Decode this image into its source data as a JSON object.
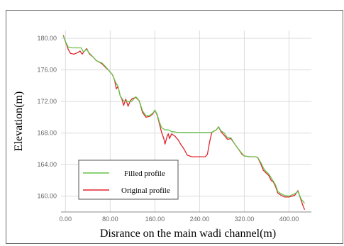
{
  "chart_data": {
    "type": "line",
    "title": "",
    "xlabel": "Disrance on the main wadi channel(m)",
    "ylabel": "Elevation(m)",
    "xlim": [
      -8,
      440
    ],
    "ylim": [
      158,
      181
    ],
    "grid": true,
    "x_ticks": [
      "0.00",
      "80.00",
      "160.00",
      "240.00",
      "320.00",
      "400.00"
    ],
    "x_tick_values": [
      0,
      80,
      160,
      240,
      320,
      400
    ],
    "y_ticks": [
      "180.00",
      "176.00",
      "172.00",
      "168.00",
      "164.00",
      "160.00"
    ],
    "y_tick_values": [
      180,
      176,
      172,
      168,
      164,
      160
    ],
    "legend_position": "bottom-left",
    "series": [
      {
        "name": "Filled profile",
        "color": "#66c24a",
        "points": [
          [
            -4,
            180.3
          ],
          [
            0,
            179.6
          ],
          [
            5,
            178.9
          ],
          [
            12,
            178.8
          ],
          [
            20,
            178.8
          ],
          [
            28,
            178.8
          ],
          [
            32,
            178.3
          ],
          [
            38,
            178.6
          ],
          [
            43,
            178.1
          ],
          [
            50,
            177.6
          ],
          [
            55,
            177.2
          ],
          [
            60,
            177.0
          ],
          [
            65,
            176.9
          ],
          [
            72,
            176.4
          ],
          [
            78,
            175.9
          ],
          [
            84,
            175.4
          ],
          [
            90,
            174.4
          ],
          [
            94,
            173.9
          ],
          [
            98,
            172.7
          ],
          [
            104,
            172.1
          ],
          [
            110,
            172.0
          ],
          [
            118,
            172.0
          ],
          [
            126,
            172.6
          ],
          [
            132,
            172.1
          ],
          [
            138,
            170.8
          ],
          [
            144,
            170.2
          ],
          [
            150,
            170.2
          ],
          [
            156,
            170.5
          ],
          [
            160,
            170.9
          ],
          [
            164,
            170.4
          ],
          [
            168,
            169.4
          ],
          [
            172,
            168.7
          ],
          [
            178,
            168.4
          ],
          [
            184,
            168.4
          ],
          [
            190,
            168.2
          ],
          [
            200,
            168.1
          ],
          [
            210,
            168.1
          ],
          [
            220,
            168.1
          ],
          [
            230,
            168.1
          ],
          [
            240,
            168.1
          ],
          [
            250,
            168.1
          ],
          [
            262,
            168.1
          ],
          [
            270,
            168.4
          ],
          [
            274,
            168.8
          ],
          [
            278,
            168.3
          ],
          [
            284,
            168.0
          ],
          [
            290,
            167.4
          ],
          [
            296,
            167.4
          ],
          [
            302,
            166.7
          ],
          [
            308,
            166.1
          ],
          [
            316,
            165.4
          ],
          [
            320,
            165.1
          ],
          [
            330,
            165.0
          ],
          [
            340,
            165.0
          ],
          [
            344,
            164.9
          ],
          [
            350,
            164.2
          ],
          [
            354,
            163.6
          ],
          [
            358,
            163.2
          ],
          [
            364,
            162.8
          ],
          [
            368,
            162.3
          ],
          [
            372,
            161.9
          ],
          [
            376,
            161.4
          ],
          [
            380,
            160.6
          ],
          [
            386,
            160.3
          ],
          [
            392,
            160.1
          ],
          [
            400,
            160.0
          ],
          [
            410,
            160.3
          ],
          [
            416,
            160.6
          ],
          [
            422,
            159.6
          ],
          [
            428,
            159.1
          ]
        ]
      },
      {
        "name": "Original profile",
        "color": "#e0242c",
        "points": [
          [
            -4,
            180.4
          ],
          [
            0,
            179.6
          ],
          [
            5,
            178.6
          ],
          [
            9,
            178.1
          ],
          [
            15,
            178.0
          ],
          [
            22,
            178.2
          ],
          [
            26,
            178.4
          ],
          [
            30,
            178.0
          ],
          [
            34,
            178.4
          ],
          [
            38,
            178.7
          ],
          [
            43,
            178.0
          ],
          [
            50,
            177.6
          ],
          [
            55,
            177.2
          ],
          [
            60,
            177.0
          ],
          [
            65,
            176.8
          ],
          [
            72,
            176.3
          ],
          [
            78,
            175.9
          ],
          [
            84,
            175.4
          ],
          [
            88,
            174.7
          ],
          [
            91,
            173.6
          ],
          [
            94,
            173.9
          ],
          [
            98,
            172.7
          ],
          [
            101,
            172.3
          ],
          [
            104,
            171.5
          ],
          [
            108,
            172.3
          ],
          [
            112,
            171.4
          ],
          [
            116,
            172.1
          ],
          [
            120,
            172.4
          ],
          [
            126,
            172.5
          ],
          [
            132,
            172.1
          ],
          [
            138,
            170.6
          ],
          [
            144,
            170.0
          ],
          [
            150,
            170.1
          ],
          [
            156,
            170.4
          ],
          [
            160,
            170.9
          ],
          [
            164,
            170.3
          ],
          [
            168,
            169.2
          ],
          [
            172,
            168.1
          ],
          [
            176,
            167.3
          ],
          [
            178,
            166.6
          ],
          [
            182,
            167.6
          ],
          [
            184,
            167.9
          ],
          [
            186,
            167.3
          ],
          [
            190,
            167.9
          ],
          [
            196,
            167.6
          ],
          [
            202,
            167.1
          ],
          [
            206,
            166.6
          ],
          [
            212,
            166.0
          ],
          [
            218,
            165.2
          ],
          [
            226,
            165.0
          ],
          [
            236,
            165.0
          ],
          [
            250,
            165.0
          ],
          [
            254,
            165.3
          ],
          [
            258,
            166.9
          ],
          [
            262,
            168.1
          ],
          [
            270,
            168.4
          ],
          [
            274,
            168.8
          ],
          [
            278,
            168.2
          ],
          [
            284,
            167.7
          ],
          [
            290,
            167.2
          ],
          [
            296,
            167.3
          ],
          [
            302,
            166.7
          ],
          [
            308,
            166.1
          ],
          [
            316,
            165.3
          ],
          [
            320,
            165.1
          ],
          [
            330,
            165.0
          ],
          [
            340,
            165.0
          ],
          [
            344,
            164.9
          ],
          [
            350,
            164.0
          ],
          [
            354,
            163.3
          ],
          [
            358,
            163.0
          ],
          [
            364,
            162.6
          ],
          [
            368,
            162.0
          ],
          [
            372,
            161.8
          ],
          [
            376,
            161.2
          ],
          [
            380,
            160.4
          ],
          [
            386,
            160.1
          ],
          [
            392,
            159.9
          ],
          [
            400,
            159.9
          ],
          [
            410,
            160.1
          ],
          [
            416,
            160.7
          ],
          [
            422,
            159.4
          ],
          [
            426,
            158.6
          ],
          [
            428,
            158.3
          ]
        ]
      }
    ]
  }
}
